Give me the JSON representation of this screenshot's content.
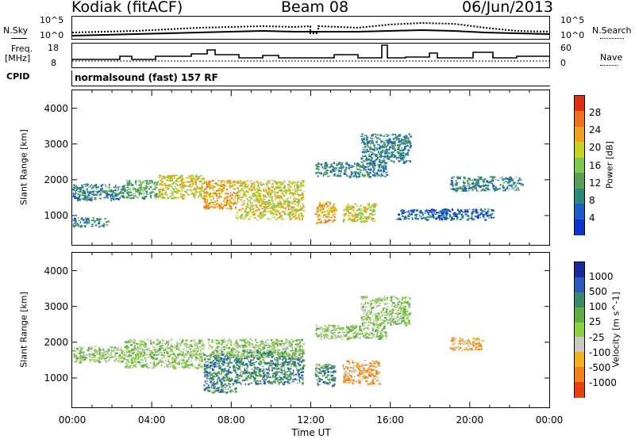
{
  "header": {
    "station": "Kodiak (fitACF)",
    "beam": "Beam 08",
    "date": "06/Jun/2013"
  },
  "params": {
    "nsky_label": "N.Sky",
    "nsky_ticks": [
      "10^5",
      "10^0"
    ],
    "nsearch_label": "N.Search",
    "nsearch_ticks": [
      "10^5",
      "10^0"
    ],
    "freq_label_1": "Freq.",
    "freq_label_2": "[MHz]",
    "freq_ticks": [
      "18",
      "8"
    ],
    "nave_label": "Nave",
    "nave_ticks": [
      "60",
      "0"
    ],
    "cpid_label": "CPID",
    "cpid_text": "normalsound (fast) 157 RF"
  },
  "xaxis": {
    "label": "Time UT",
    "ticks": [
      "00:00",
      "04:00",
      "08:00",
      "12:00",
      "16:00",
      "20:00",
      "00:00"
    ]
  },
  "colors": {
    "power": [
      "#1133cc",
      "#1e5fc7",
      "#2a8a7a",
      "#5a9e5a",
      "#7ec850",
      "#c8d020",
      "#f0a020",
      "#f07020",
      "#e03010"
    ],
    "velocity": [
      "#1a2a9a",
      "#2f5bbf",
      "#3a8a6a",
      "#5fae45",
      "#8ed040",
      "#c8c8c0",
      "#f0b020",
      "#f08020",
      "#e84010"
    ]
  },
  "chart_data": [
    {
      "type": "heatmap",
      "title": "",
      "xlabel": "Time UT",
      "ylabel": "Slant Range [km]",
      "xlim": [
        0,
        24
      ],
      "ylim": [
        180,
        4500
      ],
      "yticks": [
        1000,
        2000,
        3000,
        4000
      ],
      "colorbar": {
        "label": "Power [dB]",
        "ticks": [
          "28",
          "24",
          "20",
          "16",
          "12",
          "8",
          "4"
        ],
        "range": [
          0,
          30
        ]
      },
      "regions": [
        {
          "t0": 0.0,
          "t1": 2.6,
          "r0": 1450,
          "r1": 1900,
          "value": 8
        },
        {
          "t0": 0.0,
          "t1": 1.8,
          "r0": 700,
          "r1": 950,
          "value": 6
        },
        {
          "t0": 2.6,
          "t1": 4.3,
          "r0": 1500,
          "r1": 2000,
          "value": 12
        },
        {
          "t0": 4.3,
          "t1": 6.6,
          "r0": 1500,
          "r1": 2150,
          "value": 18
        },
        {
          "t0": 6.6,
          "t1": 8.2,
          "r0": 1200,
          "r1": 2000,
          "value": 22
        },
        {
          "t0": 8.2,
          "t1": 11.6,
          "r0": 900,
          "r1": 2000,
          "value": 18
        },
        {
          "t0": 12.2,
          "t1": 13.2,
          "r0": 800,
          "r1": 1400,
          "value": 22
        },
        {
          "t0": 13.6,
          "t1": 15.2,
          "r0": 850,
          "r1": 1350,
          "value": 18
        },
        {
          "t0": 12.2,
          "t1": 15.8,
          "r0": 2100,
          "r1": 2500,
          "value": 8
        },
        {
          "t0": 14.5,
          "t1": 17.0,
          "r0": 2500,
          "r1": 3300,
          "value": 6
        },
        {
          "t0": 19.0,
          "t1": 22.6,
          "r0": 1700,
          "r1": 2100,
          "value": 8
        },
        {
          "t0": 16.3,
          "t1": 21.2,
          "r0": 900,
          "r1": 1200,
          "value": 5
        }
      ]
    },
    {
      "type": "heatmap",
      "title": "",
      "xlabel": "Time UT",
      "ylabel": "Slant Range [km]",
      "xlim": [
        0,
        24
      ],
      "ylim": [
        180,
        4500
      ],
      "yticks": [
        1000,
        2000,
        3000,
        4000
      ],
      "colorbar": {
        "label": "Velocity [m s^-1]",
        "ticks": [
          "1000",
          "500",
          "100",
          "25",
          "-25",
          "-100",
          "-500",
          "-1000"
        ],
        "range": [
          -1000,
          1000
        ]
      },
      "regions": [
        {
          "t0": 0.0,
          "t1": 2.6,
          "r0": 1450,
          "r1": 1900,
          "value": 0
        },
        {
          "t0": 2.6,
          "t1": 6.6,
          "r0": 1300,
          "r1": 2100,
          "value": 10
        },
        {
          "t0": 6.6,
          "t1": 8.2,
          "r0": 600,
          "r1": 1700,
          "value": 300
        },
        {
          "t0": 8.2,
          "t1": 11.6,
          "r0": 850,
          "r1": 1800,
          "value": 150
        },
        {
          "t0": 6.8,
          "t1": 11.6,
          "r0": 1600,
          "r1": 2100,
          "value": 0
        },
        {
          "t0": 12.2,
          "t1": 13.2,
          "r0": 800,
          "r1": 1400,
          "value": 200
        },
        {
          "t0": 13.6,
          "t1": 15.4,
          "r0": 850,
          "r1": 1500,
          "value": -300
        },
        {
          "t0": 12.2,
          "t1": 15.8,
          "r0": 2100,
          "r1": 2500,
          "value": 0
        },
        {
          "t0": 19.0,
          "t1": 20.6,
          "r0": 1800,
          "r1": 2150,
          "value": -400
        },
        {
          "t0": 14.5,
          "t1": 17.0,
          "r0": 2500,
          "r1": 3300,
          "value": 0
        }
      ]
    }
  ]
}
